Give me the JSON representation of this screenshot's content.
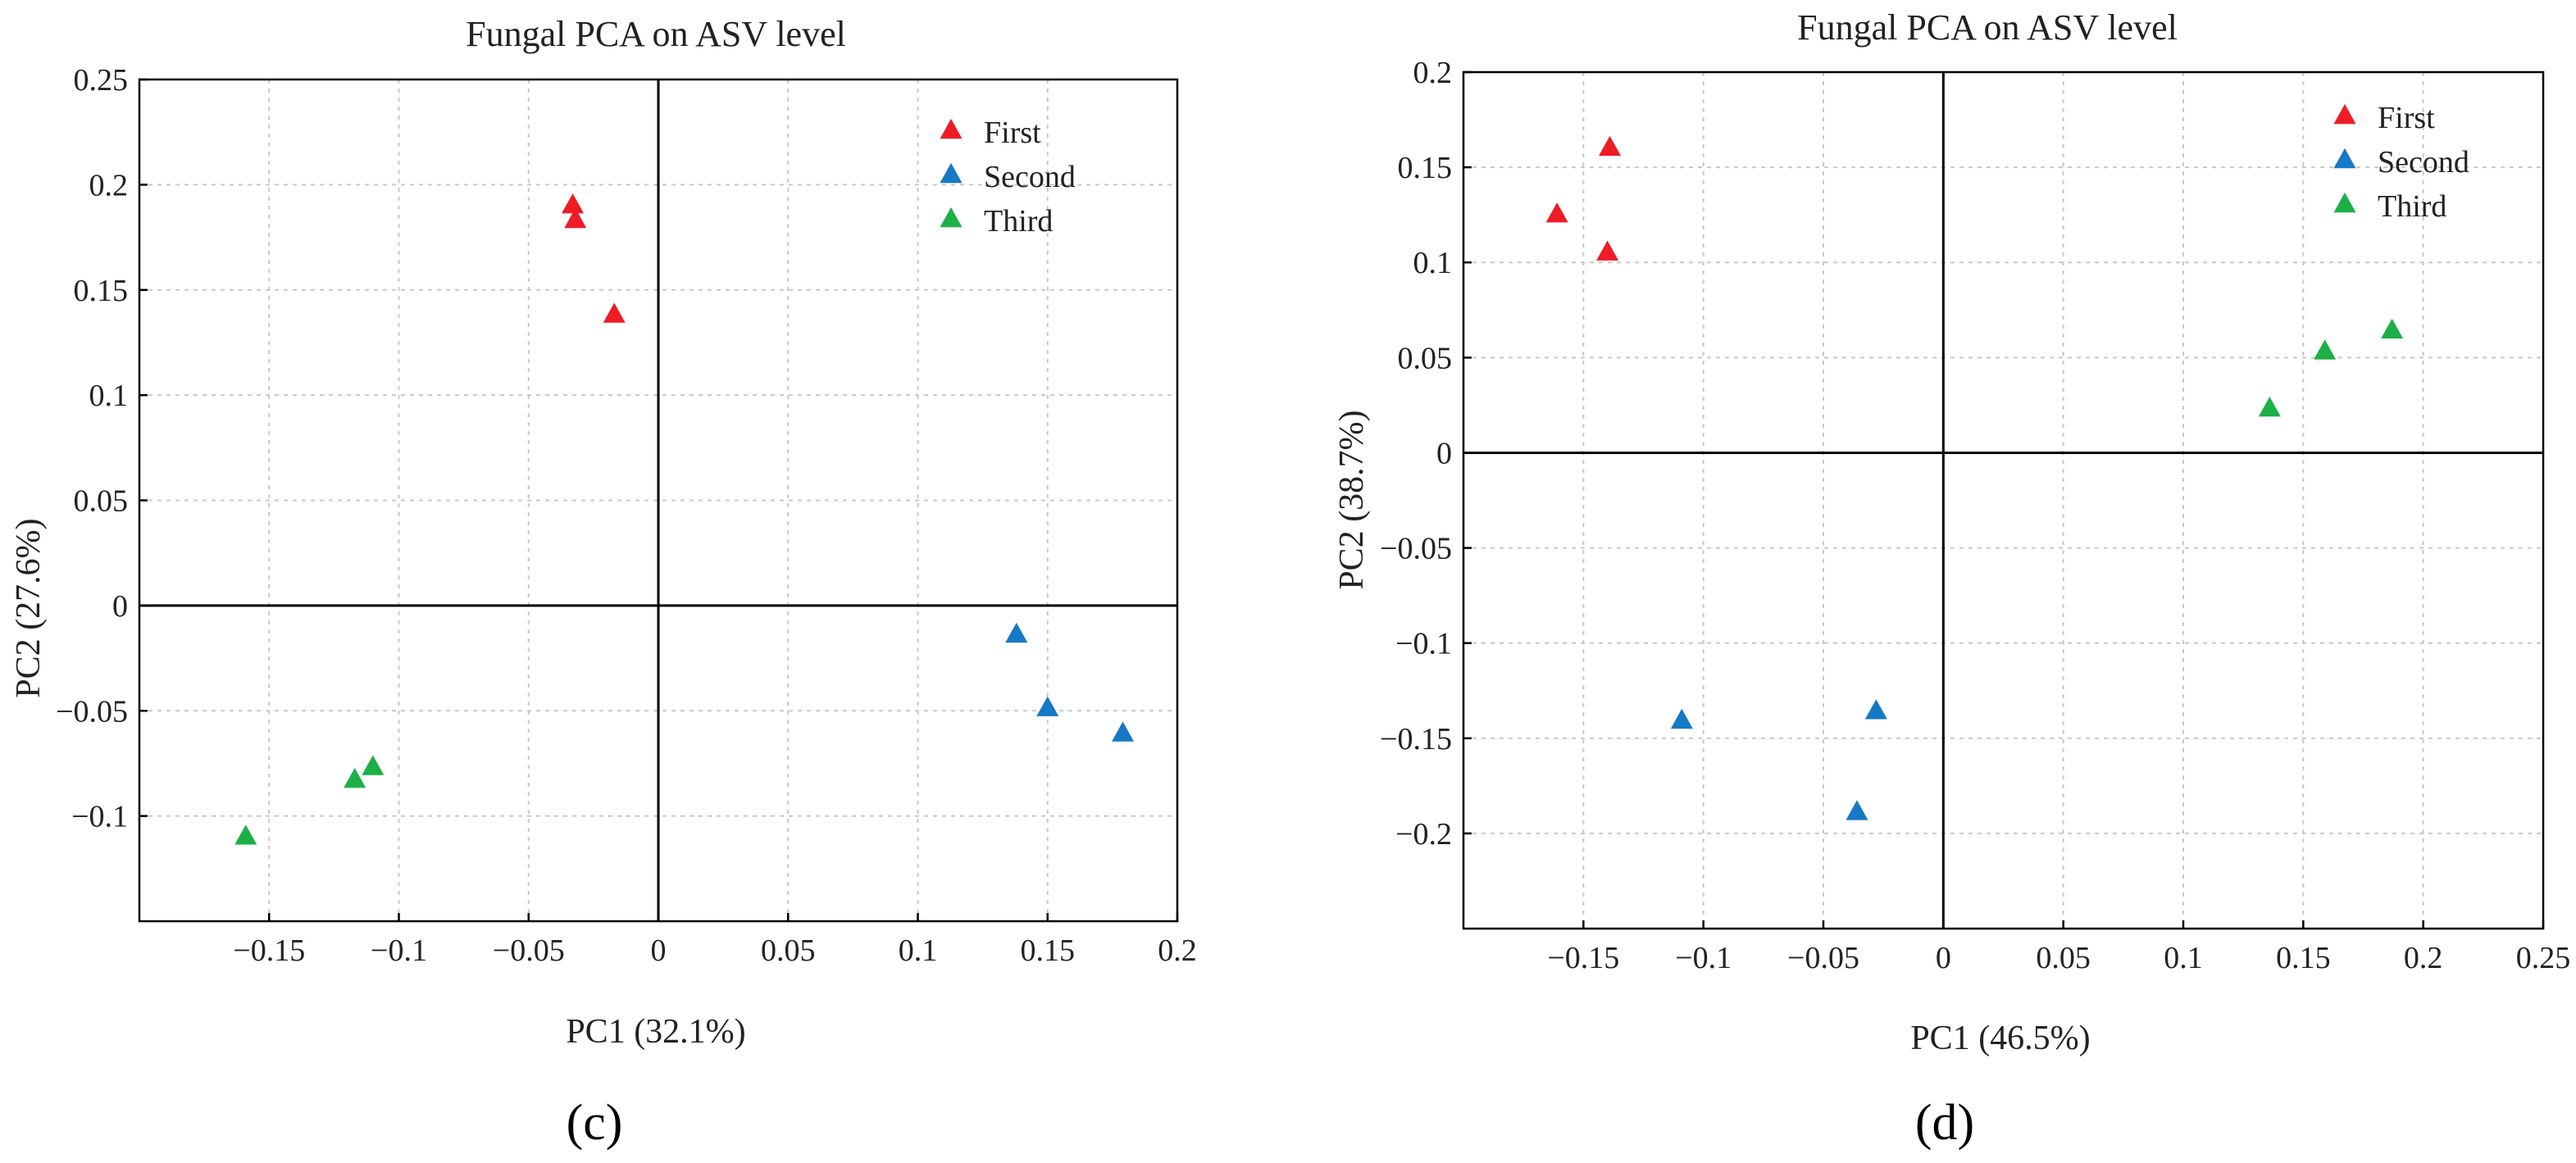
{
  "chart_data": [
    {
      "type": "scatter",
      "title": "Fungal PCA on ASV level",
      "xlabel": "PC1 (32.1%)",
      "ylabel": "PC2 (27.6%)",
      "panel_label": "(c)",
      "xlim": [
        -0.2,
        0.2
      ],
      "ylim": [
        -0.15,
        0.25
      ],
      "xticks": [
        -0.15,
        -0.1,
        -0.05,
        0,
        0.05,
        0.1,
        0.15,
        0.2
      ],
      "xtick_labels": [
        "−0.15",
        "−0.1",
        "−0.05",
        "0",
        "0.05",
        "0.1",
        "0.15",
        "0.2"
      ],
      "yticks": [
        0.25,
        0.2,
        0.15,
        0.1,
        0.05,
        0,
        -0.05,
        -0.1
      ],
      "ytick_labels": [
        "0.25",
        "0.2",
        "0.15",
        "0.1",
        "0.05",
        "0",
        "−0.05",
        "−0.1"
      ],
      "legend_position": "top-right",
      "series": [
        {
          "name": "First",
          "color": "#ee1c25",
          "points": [
            [
              -0.033,
              0.19
            ],
            [
              -0.032,
              0.183
            ],
            [
              -0.017,
              0.138
            ]
          ]
        },
        {
          "name": "Second",
          "color": "#1679c5",
          "points": [
            [
              0.138,
              -0.014
            ],
            [
              0.15,
              -0.049
            ],
            [
              0.179,
              -0.061
            ]
          ]
        },
        {
          "name": "Third",
          "color": "#1db047",
          "points": [
            [
              -0.159,
              -0.11
            ],
            [
              -0.117,
              -0.083
            ],
            [
              -0.11,
              -0.077
            ]
          ]
        }
      ]
    },
    {
      "type": "scatter",
      "title": "Fungal PCA on ASV level",
      "xlabel": "PC1 (46.5%)",
      "ylabel": "PC2 (38.7%)",
      "panel_label": "(d)",
      "xlim": [
        -0.2,
        0.25
      ],
      "ylim": [
        -0.25,
        0.2
      ],
      "xticks": [
        -0.15,
        -0.1,
        -0.05,
        0,
        0.05,
        0.1,
        0.15,
        0.2,
        0.25
      ],
      "xtick_labels": [
        "−0.15",
        "−0.1",
        "−0.05",
        "0",
        "0.05",
        "0.1",
        "0.15",
        "0.2",
        "0.25"
      ],
      "yticks": [
        0.2,
        0.15,
        0.1,
        0.05,
        0,
        -0.05,
        -0.1,
        -0.15,
        -0.2
      ],
      "ytick_labels": [
        "0.2",
        "0.15",
        "0.1",
        "0.05",
        "0",
        "−0.05",
        "−0.1",
        "−0.15",
        "−0.2"
      ],
      "legend_position": "top-right",
      "series": [
        {
          "name": "First",
          "color": "#ee1c25",
          "points": [
            [
              -0.139,
              0.16
            ],
            [
              -0.161,
              0.125
            ],
            [
              -0.14,
              0.105
            ]
          ]
        },
        {
          "name": "Second",
          "color": "#1679c5",
          "points": [
            [
              -0.109,
              -0.141
            ],
            [
              -0.028,
              -0.136
            ],
            [
              -0.036,
              -0.189
            ]
          ]
        },
        {
          "name": "Third",
          "color": "#1db047",
          "points": [
            [
              0.187,
              0.064
            ],
            [
              0.159,
              0.053
            ],
            [
              0.136,
              0.023
            ]
          ]
        }
      ]
    }
  ]
}
